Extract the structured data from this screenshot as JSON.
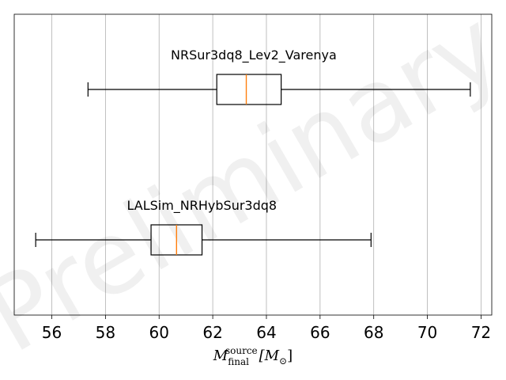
{
  "chart_data": {
    "type": "boxplot",
    "orientation": "horizontal",
    "watermark": "Preliminary",
    "xlabel": {
      "symbol": "M",
      "subscript": "final",
      "superscript": "source",
      "unit": "[M",
      "unit_sub": "⊙",
      "unit_close": "]"
    },
    "xlim": [
      54.6,
      72.4
    ],
    "xticks": [
      56,
      58,
      60,
      62,
      64,
      66,
      68,
      70,
      72
    ],
    "grid_x": true,
    "series": [
      {
        "name": "NRSur3dq8_Lev2_Varenya",
        "whisker_low": 57.35,
        "q1": 62.15,
        "median": 63.25,
        "q3": 64.55,
        "whisker_high": 71.6
      },
      {
        "name": "LALSim_NRHybSur3dq8",
        "whisker_low": 55.4,
        "q1": 59.7,
        "median": 60.65,
        "q3": 61.6,
        "whisker_high": 67.9
      }
    ],
    "colors": {
      "box": "#000000",
      "median": "#ff7f0e",
      "grid": "#b0b0b0"
    }
  }
}
